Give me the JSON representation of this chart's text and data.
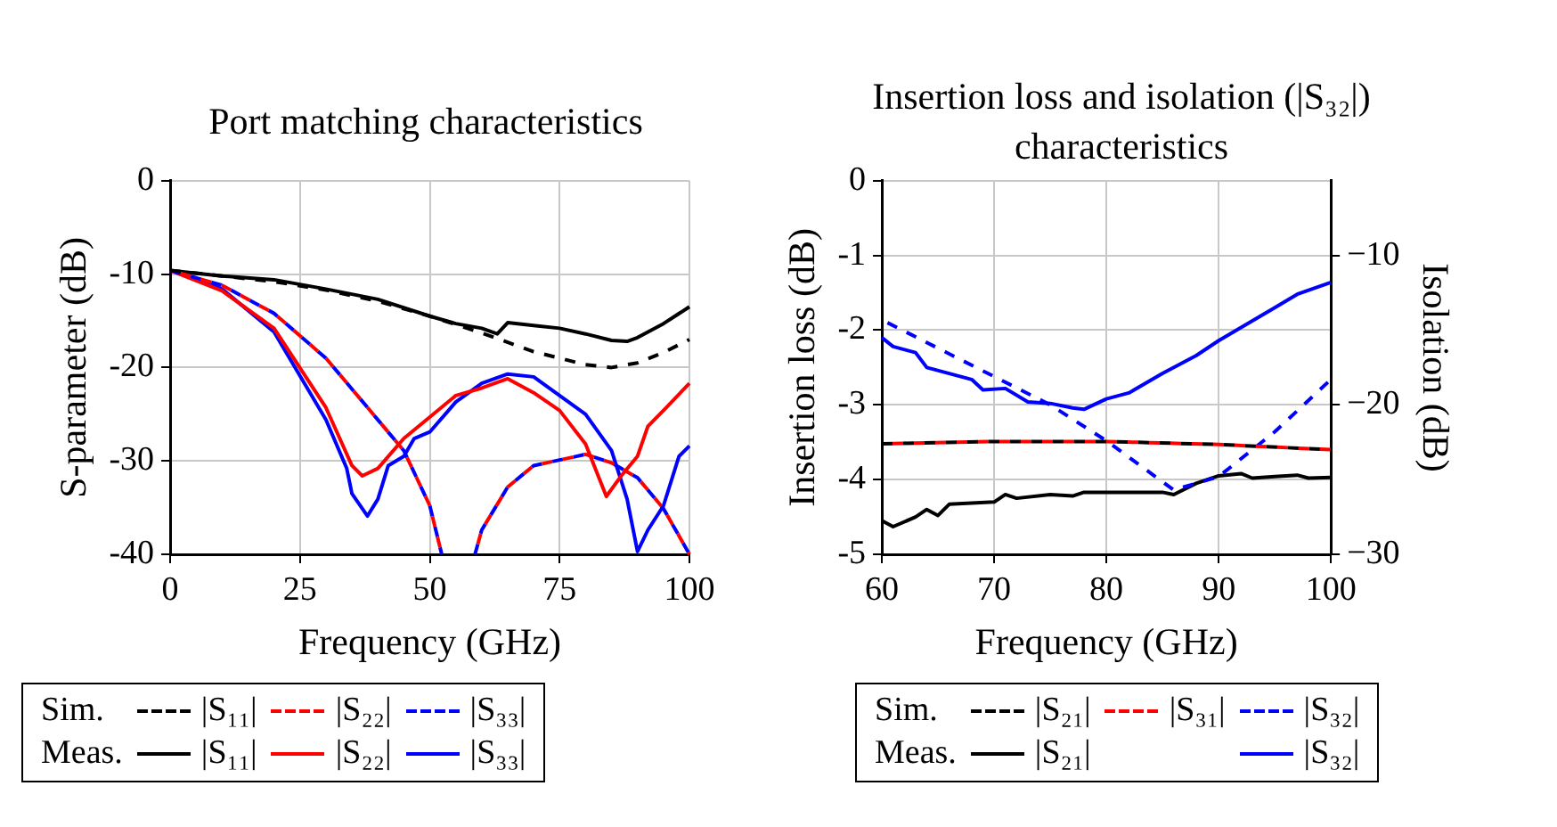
{
  "chart_data": [
    {
      "type": "line",
      "title": "Port matching characteristics",
      "xlabel": "Frequency (GHz)",
      "ylabel": "S-parameter (dB)",
      "xlim": [
        0,
        100
      ],
      "xticks": [
        0,
        25,
        50,
        75,
        100
      ],
      "ylim": [
        -40,
        0
      ],
      "yticks": [
        -40,
        -30,
        -20,
        -10,
        0
      ],
      "grid": true,
      "marker": "none",
      "legend": "bottom",
      "annotations": [
        "Sim.",
        "Meas."
      ],
      "series": [
        {
          "name": "|S₁₁|",
          "color": "#000000",
          "line_style": "dashed",
          "x": [
            0,
            10,
            20,
            30,
            40,
            50,
            60,
            70,
            80,
            85,
            90,
            95,
            100
          ],
          "values": [
            -9.6,
            -10.2,
            -10.8,
            -11.7,
            -12.9,
            -14.5,
            -16.3,
            -18.3,
            -19.7,
            -20,
            -19.5,
            -18.4,
            -17
          ]
        },
        {
          "name": "|S₂₂|",
          "color": "#ff0000",
          "line_style": "dashed",
          "x": [
            0,
            10,
            20,
            30,
            40,
            45,
            50,
            52.3,
            55,
            58.7,
            60,
            65,
            70,
            75,
            80,
            85,
            90,
            95,
            100
          ],
          "values": [
            -9.6,
            -11.2,
            -14.2,
            -19,
            -25.6,
            -28.9,
            -34.8,
            -40,
            null,
            -40,
            -37.4,
            -32.8,
            -30.5,
            -29.9,
            -29.3,
            -30.2,
            -31.8,
            -35.1,
            -40
          ]
        },
        {
          "name": "|S₃₃|",
          "color": "#0000ff",
          "line_style": "dashed",
          "x": [
            0,
            10,
            20,
            30,
            40,
            45,
            50,
            52.3,
            55,
            58.7,
            60,
            65,
            70,
            75,
            80,
            85,
            90,
            95,
            100
          ],
          "values": [
            -9.6,
            -11.2,
            -14.2,
            -19,
            -25.6,
            -28.9,
            -34.8,
            -40,
            null,
            -40,
            -37.4,
            -32.8,
            -30.5,
            -29.9,
            -29.3,
            -30.2,
            -31.8,
            -35.1,
            -40
          ]
        },
        {
          "name": "|S₁₁|",
          "color": "#000000",
          "line_style": "solid",
          "x": [
            0,
            10,
            20,
            30,
            40,
            50,
            55,
            60,
            63,
            65,
            70,
            75,
            80,
            85,
            88,
            90,
            95,
            100
          ],
          "values": [
            -9.6,
            -10.2,
            -10.6,
            -11.6,
            -12.7,
            -14.5,
            -15.3,
            -15.8,
            -16.4,
            -15.2,
            -15.5,
            -15.8,
            -16.4,
            -17.1,
            -17.2,
            -16.8,
            -15.3,
            -13.5
          ]
        },
        {
          "name": "|S₂₂|",
          "color": "#ff0000",
          "line_style": "solid",
          "x": [
            0,
            10,
            20,
            30,
            35,
            37,
            40,
            45,
            50,
            55,
            60,
            65,
            70,
            75,
            80,
            84,
            87,
            90,
            92,
            95,
            100
          ],
          "values": [
            -9.6,
            -11.8,
            -15.8,
            -24.3,
            -30.5,
            -31.6,
            -30.8,
            -27.6,
            -25.3,
            -23,
            -22.2,
            -21.2,
            -22.7,
            -24.6,
            -28.2,
            -33.8,
            -31.5,
            -29.5,
            -26.3,
            -24.6,
            -21.7
          ]
        },
        {
          "name": "|S₃₃|",
          "color": "#0000ff",
          "line_style": "solid",
          "x": [
            0,
            10,
            20,
            30,
            34,
            35,
            38,
            40,
            42,
            45,
            47,
            50,
            55,
            60,
            65,
            70,
            75,
            80,
            85,
            88,
            90,
            92,
            95,
            98,
            100
          ],
          "values": [
            -9.6,
            -11.6,
            -16.2,
            -25.6,
            -30.8,
            -33.5,
            -35.9,
            -34.1,
            -30.5,
            -29.5,
            -27.6,
            -26.9,
            -23.7,
            -21.7,
            -20.7,
            -21,
            -23,
            -25,
            -28.9,
            -34.1,
            -39.7,
            -37.4,
            -34.8,
            -29.5,
            -28.4
          ]
        }
      ]
    },
    {
      "type": "line",
      "title": "Insertion loss and isolation (|S₃₂|) characteristics",
      "xlabel": "Frequency (GHz)",
      "ylabel": "Insertion loss (dB)",
      "y2label": "Isolation (dB)",
      "xlim": [
        60,
        100
      ],
      "xticks": [
        60,
        70,
        80,
        90,
        100
      ],
      "ylim": [
        -5,
        0
      ],
      "yticks": [
        -5,
        -4,
        -3,
        -2,
        -1,
        0
      ],
      "y2lim": [
        -30,
        -5
      ],
      "y2ticks": [
        {
          "value": -30,
          "label": "−30"
        },
        {
          "value": -20,
          "label": "−20"
        },
        {
          "value": -10,
          "label": "−10"
        }
      ],
      "grid": true,
      "marker": "none",
      "legend": "bottom",
      "annotations": [
        "Sim.",
        "Meas."
      ],
      "series": [
        {
          "name": "|S₂₁|",
          "color": "#000000",
          "line_style": "dashed",
          "x": [
            60,
            70,
            80,
            90,
            100
          ],
          "values": [
            -3.52,
            -3.49,
            -3.49,
            -3.53,
            -3.6
          ]
        },
        {
          "name": "|S₃₁|",
          "color": "#ff0000",
          "line_style": "dashed",
          "x": [
            60,
            70,
            80,
            90,
            100
          ],
          "values": [
            -3.52,
            -3.49,
            -3.49,
            -3.53,
            -3.6
          ]
        },
        {
          "name": "|S₃₂|",
          "color": "#0000ff",
          "line_style": "dashed",
          "axis": "y2",
          "x": [
            60.5,
            75,
            80,
            86,
            90,
            95,
            100
          ],
          "values": [
            -14.5,
            -20,
            -22.4,
            -25.7,
            -24.8,
            -21.8,
            -18.3
          ]
        },
        {
          "name": "|S₂₁|",
          "color": "#000000",
          "line_style": "solid",
          "x": [
            60,
            61,
            63,
            64,
            65,
            66,
            70,
            71,
            72,
            75,
            77,
            78,
            80,
            85,
            86,
            88,
            90,
            92,
            93,
            95,
            97,
            98,
            100
          ],
          "values": [
            -4.55,
            -4.63,
            -4.5,
            -4.4,
            -4.48,
            -4.33,
            -4.3,
            -4.2,
            -4.25,
            -4.2,
            -4.22,
            -4.17,
            -4.17,
            -4.17,
            -4.2,
            -4.05,
            -3.95,
            -3.92,
            -3.98,
            -3.96,
            -3.94,
            -3.98,
            -3.97
          ]
        },
        {
          "name": "|S₃₂|",
          "color": "#0000ff",
          "line_style": "solid",
          "axis": "y2",
          "x": [
            60,
            61,
            63,
            64,
            66,
            68,
            69,
            71,
            73,
            75,
            77,
            78,
            80,
            82,
            85,
            88,
            90,
            95,
            97,
            100
          ],
          "values": [
            -15.5,
            -16.1,
            -16.5,
            -17.5,
            -17.9,
            -18.3,
            -19,
            -18.9,
            -19.8,
            -19.9,
            -20.2,
            -20.3,
            -19.6,
            -19.2,
            -17.9,
            -16.7,
            -15.7,
            -13.5,
            -12.6,
            -11.8
          ]
        }
      ]
    }
  ]
}
